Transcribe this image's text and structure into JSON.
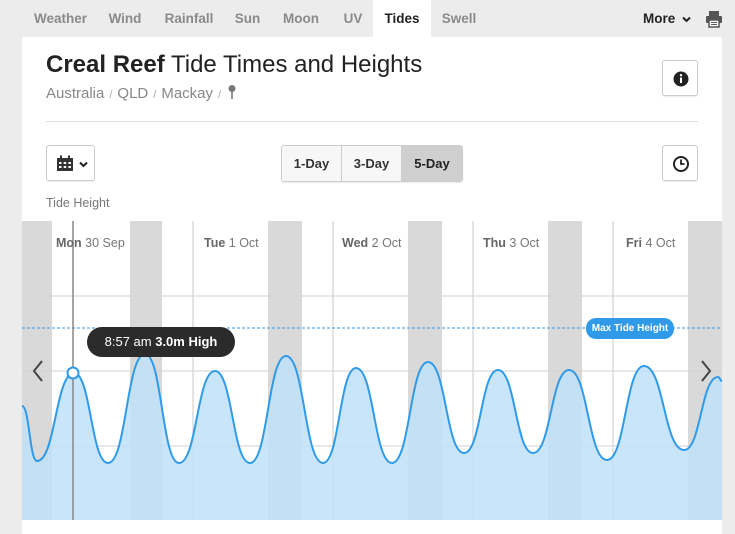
{
  "nav": {
    "tabs": [
      {
        "label": "Weather",
        "active": false
      },
      {
        "label": "Wind",
        "active": false
      },
      {
        "label": "Rainfall",
        "active": false
      },
      {
        "label": "Sun",
        "active": false
      },
      {
        "label": "Moon",
        "active": false
      },
      {
        "label": "UV",
        "active": false
      },
      {
        "label": "Tides",
        "active": true
      },
      {
        "label": "Swell",
        "active": false
      }
    ],
    "more_label": "More",
    "print_icon": "printer-icon"
  },
  "header": {
    "title_bold": "Creal Reef",
    "title_rest": "Tide Times and Heights",
    "breadcrumb": [
      "Australia",
      "QLD",
      "Mackay"
    ],
    "separator": "/",
    "pin_icon": "location-pin-icon",
    "info_icon": "info-icon"
  },
  "controls": {
    "calendar_icon": "calendar-icon",
    "range_options": [
      {
        "label": "1-Day",
        "active": false
      },
      {
        "label": "3-Day",
        "active": false
      },
      {
        "label": "5-Day",
        "active": true
      }
    ],
    "clock_icon": "clock-icon"
  },
  "tide_section": {
    "label": "Tide Height"
  },
  "chart_data": {
    "type": "area",
    "days": [
      {
        "day": "Mon",
        "date": "30 Sep"
      },
      {
        "day": "Tue",
        "date": "1 Oct"
      },
      {
        "day": "Wed",
        "date": "2 Oct"
      },
      {
        "day": "Thu",
        "date": "3 Oct"
      },
      {
        "day": "Fri",
        "date": "4 Oct"
      }
    ],
    "tooltip": {
      "time": "8:57 am",
      "height": "3.0m",
      "type": "High"
    },
    "max_tide_label": "Max Tide Height",
    "fill_color": "#bfe0f8",
    "line_color": "#2f9be8",
    "night_color": "#d9d9d9"
  }
}
